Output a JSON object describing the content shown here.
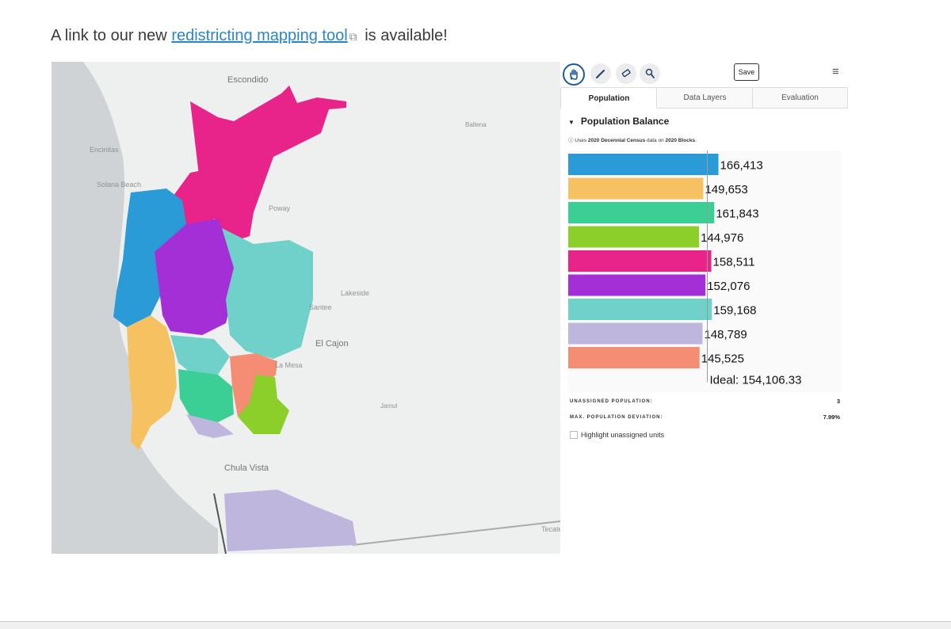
{
  "intro": {
    "prefix": "A link to our new ",
    "link_text": "redistricting mapping tool",
    "suffix": " is available!"
  },
  "map": {
    "places": [
      "Escondido",
      "Encinitas",
      "Solana Beach",
      "Ballena",
      "Poway",
      "Lakeside",
      "Santee",
      "El Cajon",
      "La Mesa",
      "Jamul",
      "Chula Vista",
      "Tecate"
    ],
    "district_colors": [
      "#2a9bd6",
      "#f6c261",
      "#3ccf95",
      "#8ccf2b",
      "#e8248b",
      "#a52fd6",
      "#6fd1c9",
      "#bfb6de",
      "#f58d74"
    ]
  },
  "toolbar": {
    "tools": [
      {
        "name": "pan-tool",
        "icon": "hand-icon"
      },
      {
        "name": "brush-tool",
        "icon": "pencil-icon"
      },
      {
        "name": "eraser-tool",
        "icon": "eraser-icon"
      },
      {
        "name": "inspect-tool",
        "icon": "magnifier-icon"
      }
    ],
    "save_label": "Save",
    "menu_icon": "hamburger-icon"
  },
  "tabs": [
    {
      "label": "Population"
    },
    {
      "label": "Data Layers"
    },
    {
      "label": "Evaluation"
    }
  ],
  "panel": {
    "section_title": "Population Balance",
    "note_info": "ⓘ",
    "note_prefix": " Uses ",
    "note_bold1": "2020 Decennial Census",
    "note_mid": " data on ",
    "note_bold2": "2020 Blocks",
    "note_end": ".",
    "unassigned_label": "UNASSIGNED POPULATION:",
    "unassigned_value": "3",
    "deviation_label": "MAX. POPULATION DEVIATION:",
    "deviation_value": "7.99%",
    "highlight_label": "Highlight unassigned units"
  },
  "chart_data": {
    "type": "bar",
    "orientation": "horizontal",
    "values": [
      166413,
      149653,
      161843,
      144976,
      158511,
      152076,
      159168,
      148789,
      145525
    ],
    "value_labels": [
      "166,413",
      "149,653",
      "161,843",
      "144,976",
      "158,511",
      "152,076",
      "159,168",
      "148,789",
      "145,525"
    ],
    "colors": [
      "#2a9bd6",
      "#f6c261",
      "#3ccf95",
      "#8ccf2b",
      "#e8248b",
      "#a52fd6",
      "#6fd1c9",
      "#bfb6de",
      "#f58d74"
    ],
    "ideal": 154106.33,
    "ideal_label": "Ideal: 154,106.33",
    "xlim": [
      0,
      180000
    ]
  }
}
